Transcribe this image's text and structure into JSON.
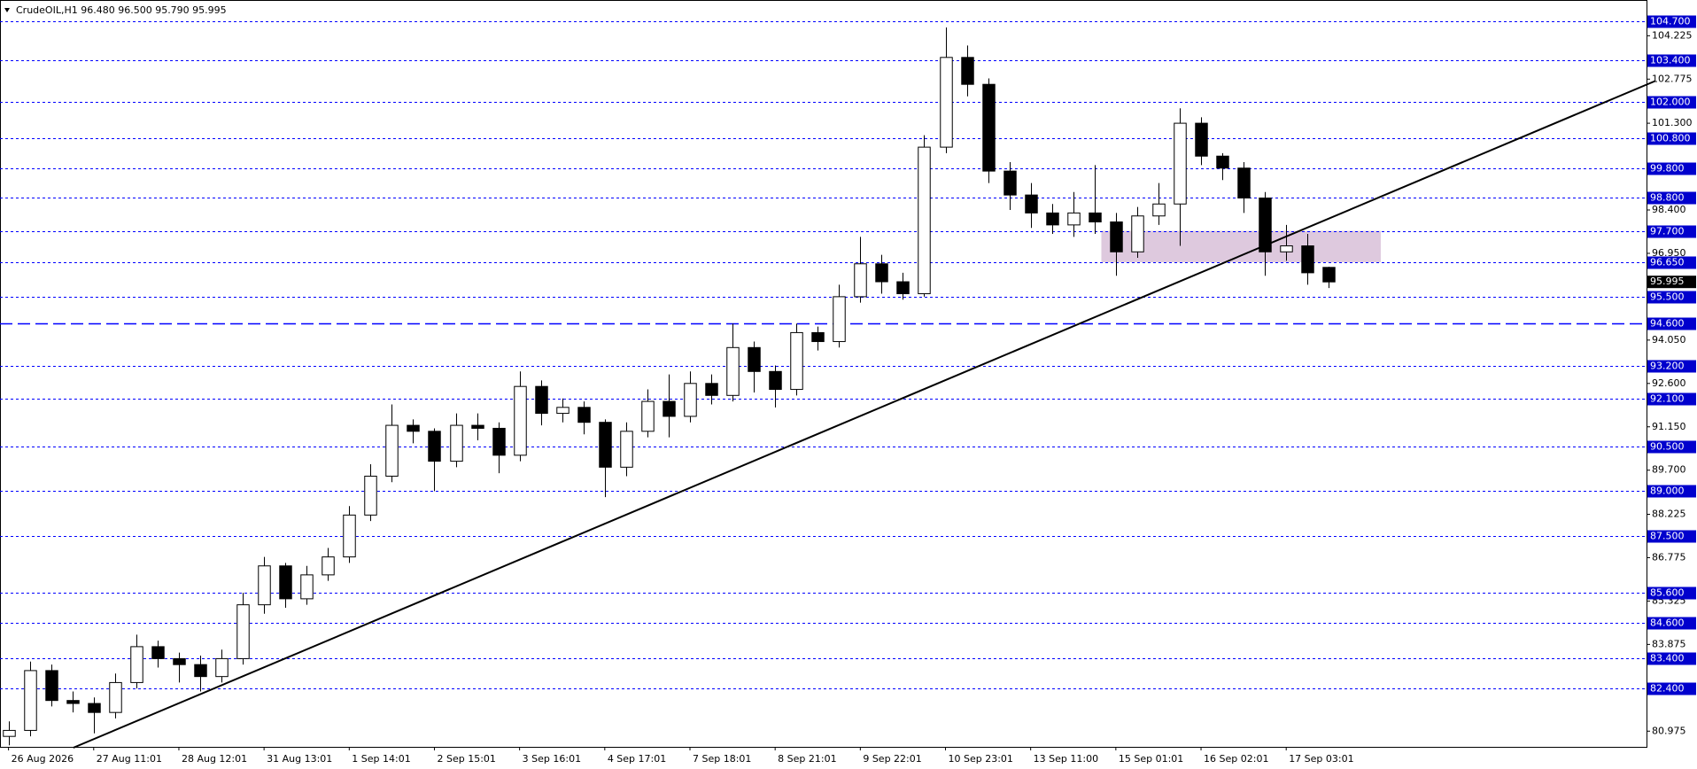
{
  "chart_data": {
    "type": "candlestick",
    "title": "CrudeOIL,H1  96.480 96.500 95.790 95.995",
    "x": [
      0,
      0.25,
      0.5,
      0.75,
      1,
      1.25,
      1.5,
      1.75,
      2,
      2.25,
      2.5,
      2.75,
      3,
      3.25,
      3.5,
      3.75,
      4,
      4.25,
      4.5,
      4.75,
      5,
      5.25,
      5.5,
      5.75,
      6,
      6.25,
      6.5,
      6.75,
      7,
      7.25,
      7.5,
      7.75,
      8,
      8.25,
      8.5,
      8.75,
      9,
      9.25,
      9.5,
      9.75,
      10,
      10.25,
      10.5,
      10.75,
      11,
      11.25,
      11.5,
      11.75,
      12,
      12.25,
      12.5,
      12.75,
      13,
      13.25,
      13.5,
      13.75,
      14,
      14.25,
      14.5,
      14.75,
      15,
      15.25,
      15.5
    ],
    "open": [
      80.8,
      81.0,
      83.0,
      82.0,
      81.9,
      81.6,
      82.6,
      83.8,
      83.4,
      83.2,
      82.8,
      83.4,
      85.2,
      86.5,
      85.4,
      86.2,
      86.8,
      88.2,
      89.5,
      91.2,
      91.0,
      90.0,
      91.2,
      91.1,
      90.2,
      92.5,
      91.6,
      91.8,
      91.3,
      89.8,
      91.0,
      92.0,
      91.5,
      92.6,
      92.2,
      93.8,
      93.0,
      92.4,
      94.3,
      94.0,
      95.5,
      96.6,
      96.0,
      95.6,
      100.5,
      103.5,
      102.6,
      99.7,
      98.9,
      98.3,
      97.9,
      98.3,
      98.0,
      97.0,
      98.2,
      98.6,
      101.3,
      100.2,
      99.8,
      98.8,
      97.0,
      97.2,
      96.48
    ],
    "high": [
      81.3,
      83.3,
      83.2,
      82.3,
      82.1,
      82.9,
      84.2,
      84.0,
      83.6,
      83.5,
      83.7,
      85.6,
      86.8,
      86.6,
      86.5,
      87.1,
      88.5,
      89.9,
      91.9,
      91.4,
      91.1,
      91.6,
      91.6,
      91.3,
      93.0,
      92.7,
      92.1,
      92.0,
      91.4,
      91.3,
      92.4,
      92.9,
      93.0,
      92.9,
      94.6,
      94.0,
      93.2,
      94.6,
      94.5,
      95.9,
      97.5,
      96.9,
      96.3,
      100.9,
      104.5,
      103.9,
      102.8,
      100.0,
      99.3,
      98.6,
      99.0,
      99.9,
      98.3,
      98.5,
      99.3,
      101.8,
      101.5,
      100.3,
      100.0,
      99.0,
      97.9,
      97.6,
      96.5
    ],
    "low": [
      80.5,
      80.8,
      81.8,
      81.6,
      80.9,
      81.4,
      82.4,
      83.1,
      82.6,
      82.3,
      82.6,
      83.2,
      84.9,
      85.1,
      85.2,
      86.0,
      86.6,
      88.0,
      89.3,
      90.6,
      89.0,
      89.8,
      90.7,
      89.6,
      90.0,
      91.2,
      91.3,
      90.9,
      88.8,
      89.5,
      90.8,
      90.8,
      91.3,
      91.9,
      92.0,
      92.3,
      91.8,
      92.2,
      93.7,
      93.8,
      95.3,
      95.6,
      95.4,
      95.5,
      100.3,
      102.2,
      99.3,
      98.4,
      97.8,
      97.6,
      97.5,
      97.6,
      96.2,
      96.8,
      97.9,
      97.2,
      99.9,
      99.4,
      98.3,
      96.2,
      96.7,
      95.9,
      95.79
    ],
    "close": [
      81.0,
      83.0,
      82.0,
      81.9,
      81.6,
      82.6,
      83.8,
      83.4,
      83.2,
      82.8,
      83.4,
      85.2,
      86.5,
      85.4,
      86.2,
      86.8,
      88.2,
      89.5,
      91.2,
      91.0,
      90.0,
      91.2,
      91.1,
      90.2,
      92.5,
      91.6,
      91.8,
      91.3,
      89.8,
      91.0,
      92.0,
      91.5,
      92.6,
      92.2,
      93.8,
      93.0,
      92.4,
      94.3,
      94.0,
      95.5,
      96.6,
      96.0,
      95.6,
      100.5,
      103.5,
      102.6,
      99.7,
      98.9,
      98.3,
      97.9,
      98.3,
      98.0,
      97.0,
      98.2,
      98.6,
      101.3,
      100.2,
      99.8,
      98.8,
      97.0,
      97.2,
      96.3,
      95.995
    ],
    "xlim": [
      -0.1,
      19.23
    ],
    "ylim": [
      80.45,
      105.42
    ],
    "xticks": [
      {
        "value": 0,
        "label": "26 Aug 2026"
      },
      {
        "value": 1,
        "label": "27 Aug 11:01"
      },
      {
        "value": 2,
        "label": "28 Aug 12:01"
      },
      {
        "value": 3,
        "label": "31 Aug 13:01"
      },
      {
        "value": 4,
        "label": "1 Sep 14:01"
      },
      {
        "value": 5,
        "label": "2 Sep 15:01"
      },
      {
        "value": 6,
        "label": "3 Sep 16:01"
      },
      {
        "value": 7,
        "label": "4 Sep 17:01"
      },
      {
        "value": 8,
        "label": "7 Sep 18:01"
      },
      {
        "value": 9,
        "label": "8 Sep 21:01"
      },
      {
        "value": 10,
        "label": "9 Sep 22:01"
      },
      {
        "value": 11,
        "label": "10 Sep 23:01"
      },
      {
        "value": 12,
        "label": "13 Sep 11:00"
      },
      {
        "value": 13,
        "label": "15 Sep 01:01"
      },
      {
        "value": 14,
        "label": "16 Sep 02:01"
      },
      {
        "value": 15,
        "label": "17 Sep 03:01"
      }
    ],
    "yticks": [
      104.225,
      102.775,
      {
        "value": 101.3,
        "label": "101.300"
      },
      {
        "value": 98.4,
        "label": "98.400"
      },
      {
        "value": 96.95,
        "label": "96.950"
      },
      {
        "value": 94.05,
        "label": "94.050"
      },
      {
        "value": 92.6,
        "label": "92.600"
      },
      {
        "value": 91.15,
        "label": "91.150"
      },
      {
        "value": 89.7,
        "label": "89.700"
      },
      88.225,
      86.775,
      85.325,
      83.875,
      80.975
    ],
    "levels": [
      {
        "value": 104.7,
        "label": "104.700",
        "style": "dotted"
      },
      {
        "value": 103.4,
        "label": "103.400",
        "style": "dotted"
      },
      {
        "value": 102,
        "label": "102.000",
        "style": "dotted"
      },
      {
        "value": 100.8,
        "label": "100.800",
        "style": "dotted"
      },
      {
        "value": 99.8,
        "label": "99.800",
        "style": "dotted"
      },
      {
        "value": 98.8,
        "label": "98.800",
        "style": "dotted"
      },
      {
        "value": 97.7,
        "label": "97.700",
        "style": "dotted"
      },
      {
        "value": 96.65,
        "label": "96.650",
        "style": "dotted"
      },
      {
        "value": 95.5,
        "label": "95.500",
        "style": "dotted"
      },
      {
        "value": 94.6,
        "label": "94.600",
        "style": "dashed"
      },
      {
        "value": 93.2,
        "label": "93.200",
        "style": "dotted"
      },
      {
        "value": 92.1,
        "label": "92.100",
        "style": "dotted"
      },
      {
        "value": 90.5,
        "label": "90.500",
        "style": "dotted"
      },
      {
        "value": 89,
        "label": "89.000",
        "style": "dotted"
      },
      {
        "value": 87.5,
        "label": "87.500",
        "style": "dotted"
      },
      {
        "value": 85.6,
        "label": "85.600",
        "style": "dotted"
      },
      {
        "value": 84.6,
        "label": "84.600",
        "style": "dotted"
      },
      {
        "value": 83.4,
        "label": "83.400",
        "style": "dotted"
      },
      {
        "value": 82.4,
        "label": "82.400",
        "style": "dotted"
      }
    ],
    "level_color": "#0000ff",
    "last_price": 95.995,
    "trendline": {
      "x": [
        0.76,
        19.33
      ],
      "y": [
        80.42,
        102.71
      ]
    },
    "zone": {
      "x": [
        12.83,
        16.11
      ],
      "y": [
        96.65,
        97.7
      ],
      "color": "#d8bfd8"
    },
    "up_color": "#ffffff",
    "down_color": "#000000"
  }
}
